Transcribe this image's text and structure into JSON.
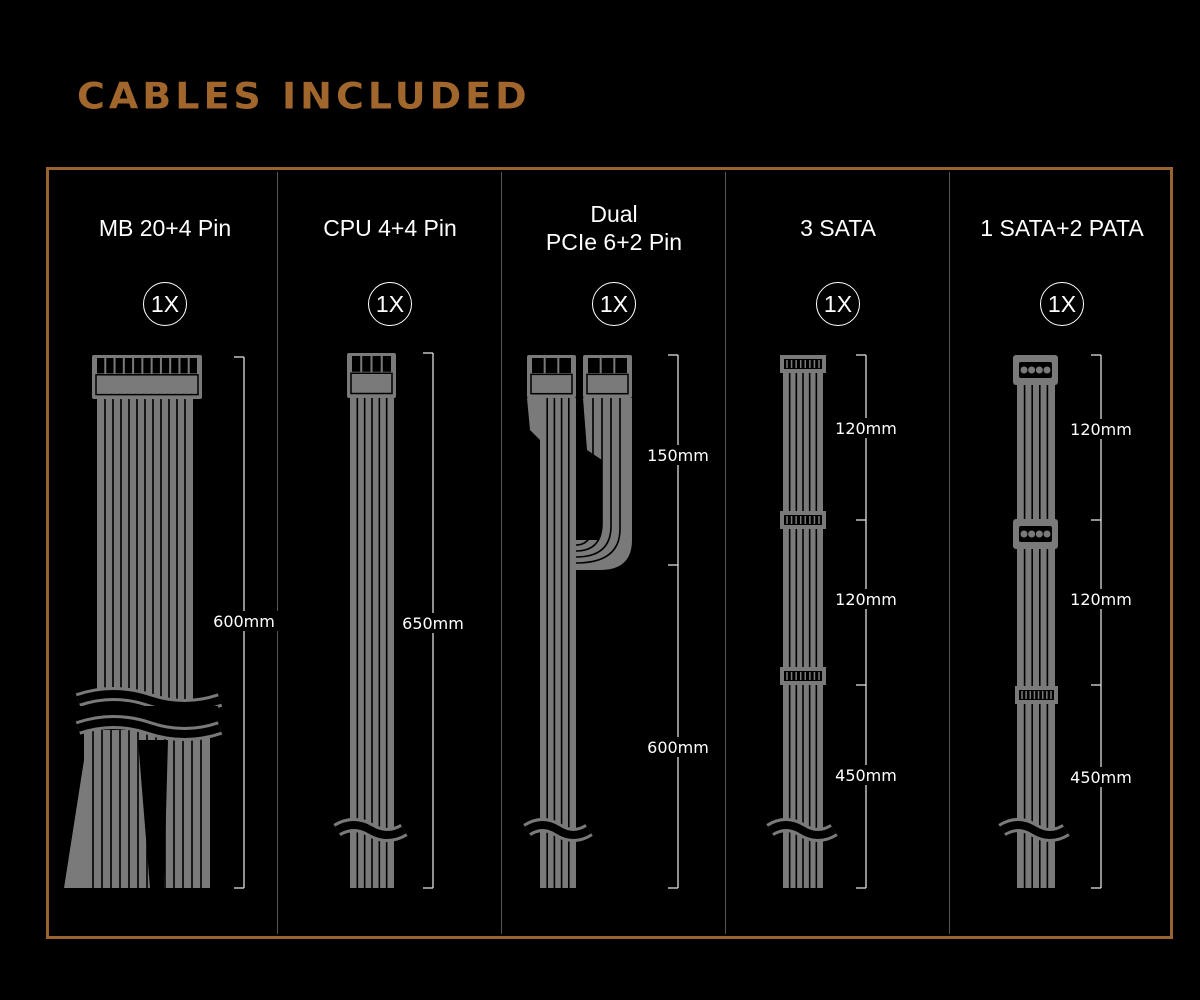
{
  "heading": "CABLES INCLUDED",
  "colors": {
    "accent": "#9a6430",
    "cable": "#7a7a7a",
    "background": "#000000"
  },
  "cables": [
    {
      "name": "MB 20+4 Pin",
      "count": "1X",
      "lengths": [
        "600mm"
      ]
    },
    {
      "name": "CPU 4+4 Pin",
      "count": "1X",
      "lengths": [
        "650mm"
      ]
    },
    {
      "name": "Dual\nPCIe 6+2 Pin",
      "count": "1X",
      "lengths": [
        "150mm",
        "600mm"
      ]
    },
    {
      "name": "3 SATA",
      "count": "1X",
      "lengths": [
        "120mm",
        "120mm",
        "450mm"
      ]
    },
    {
      "name": "1 SATA+2 PATA",
      "count": "1X",
      "lengths": [
        "120mm",
        "120mm",
        "450mm"
      ]
    }
  ]
}
